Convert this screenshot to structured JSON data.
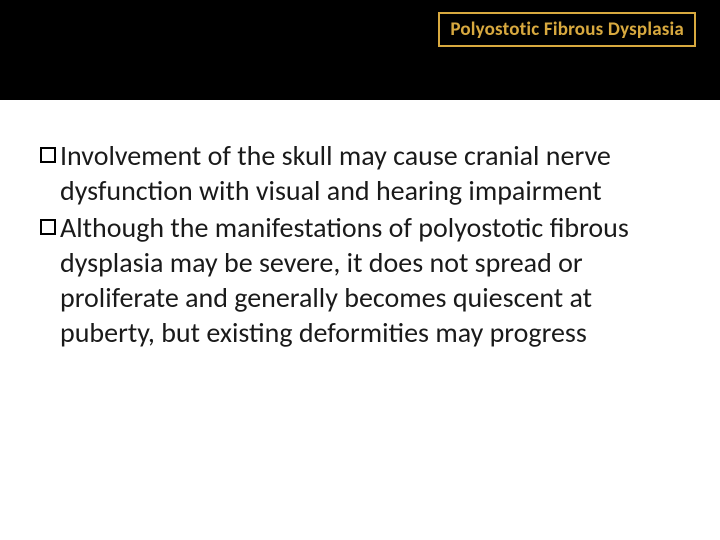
{
  "header": {
    "title": "Polyostotic Fibrous Dysplasia",
    "title_color": "#d8a93f",
    "title_border_color": "#d8a93f",
    "title_bg": "#000000",
    "bar_bg": "#000000",
    "title_fontsize": 19
  },
  "content": {
    "text_color": "#1a1a1a",
    "fontsize": 28,
    "bullet_border": "#000000",
    "bullets": [
      {
        "text": "Involvement of the skull may cause cranial nerve dysfunction with visual and hearing impairment"
      },
      {
        "text": "Although the manifestations of polyostotic fibrous dysplasia may be severe, it does not spread or proliferate and generally becomes quiescent at puberty, but existing deformities may progress"
      }
    ]
  },
  "background_color": "#ffffff"
}
